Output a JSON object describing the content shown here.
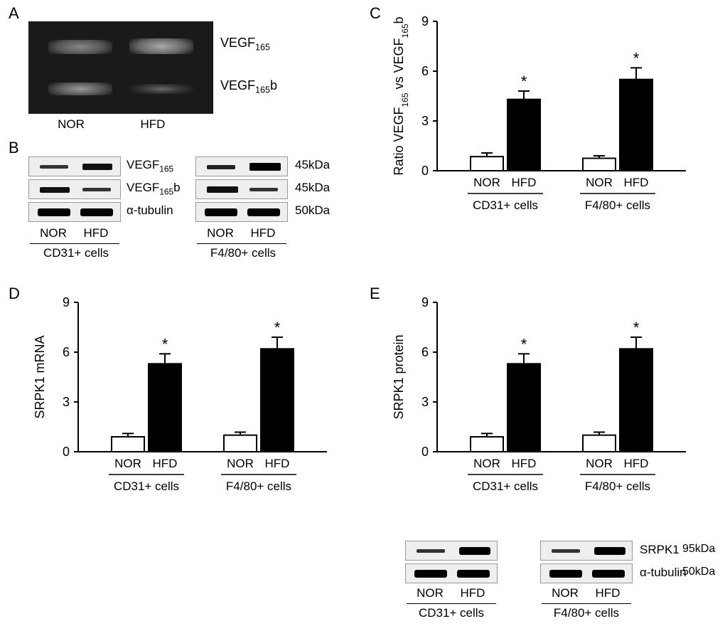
{
  "labels": {
    "A": "A",
    "B": "B",
    "C": "C",
    "D": "D",
    "E": "E",
    "NOR": "NOR",
    "HFD": "HFD",
    "VEGF165": "VEGF",
    "VEGF165_sub": "165",
    "VEGF165b": "VEGF",
    "VEGF165b_sub": "165",
    "VEGF165b_suf": "b",
    "a_tubulin": "α-tubulin",
    "kd45": "45kDa",
    "kd50": "50kDa",
    "kd95": "95kDa",
    "CD31": "CD31+ cells",
    "F480": "F4/80+ cells",
    "SRPK1": "SRPK1",
    "star": "*"
  },
  "panelA": {
    "gel_bg": "#1a1a1a",
    "band_color": "#aaaaaa"
  },
  "panelC": {
    "ylabel": "Ratio VEGF",
    "ylim": [
      0,
      9
    ],
    "ytick_step": 3,
    "groups": [
      "CD31+ cells",
      "F4/80+ cells"
    ],
    "bars": [
      {
        "cond": "NOR",
        "val": 0.85,
        "err": 0.22,
        "fill": "#ffffff"
      },
      {
        "cond": "HFD",
        "val": 4.3,
        "err": 0.5,
        "fill": "#000000",
        "star": true
      },
      {
        "cond": "NOR",
        "val": 0.75,
        "err": 0.15,
        "fill": "#ffffff"
      },
      {
        "cond": "HFD",
        "val": 5.5,
        "err": 0.7,
        "fill": "#000000",
        "star": true
      }
    ]
  },
  "panelD": {
    "ylabel": "SRPK1 mRNA",
    "ylim": [
      0,
      9
    ],
    "ytick_step": 3,
    "groups": [
      "CD31+ cells",
      "F4/80+ cells"
    ],
    "bars": [
      {
        "cond": "NOR",
        "val": 0.9,
        "err": 0.2,
        "fill": "#ffffff"
      },
      {
        "cond": "HFD",
        "val": 5.3,
        "err": 0.6,
        "fill": "#000000",
        "star": true
      },
      {
        "cond": "NOR",
        "val": 1.0,
        "err": 0.18,
        "fill": "#ffffff"
      },
      {
        "cond": "HFD",
        "val": 6.2,
        "err": 0.7,
        "fill": "#000000",
        "star": true
      }
    ]
  },
  "panelE": {
    "ylabel": "SRPK1 protein",
    "ylim": [
      0,
      9
    ],
    "ytick_step": 3,
    "groups": [
      "CD31+ cells",
      "F4/80+ cells"
    ],
    "bars": [
      {
        "cond": "NOR",
        "val": 0.9,
        "err": 0.2,
        "fill": "#ffffff"
      },
      {
        "cond": "HFD",
        "val": 5.3,
        "err": 0.6,
        "fill": "#000000",
        "star": true
      },
      {
        "cond": "NOR",
        "val": 1.0,
        "err": 0.18,
        "fill": "#ffffff"
      },
      {
        "cond": "HFD",
        "val": 6.2,
        "err": 0.7,
        "fill": "#000000",
        "star": true
      }
    ]
  },
  "colors": {
    "axis": "#000000",
    "nor_fill": "#ffffff",
    "hfd_fill": "#000000",
    "bg": "#ffffff"
  },
  "fonts": {
    "panel_label_pt": 22,
    "axis_label_pt": 18,
    "tick_pt": 16,
    "group_pt": 17
  }
}
